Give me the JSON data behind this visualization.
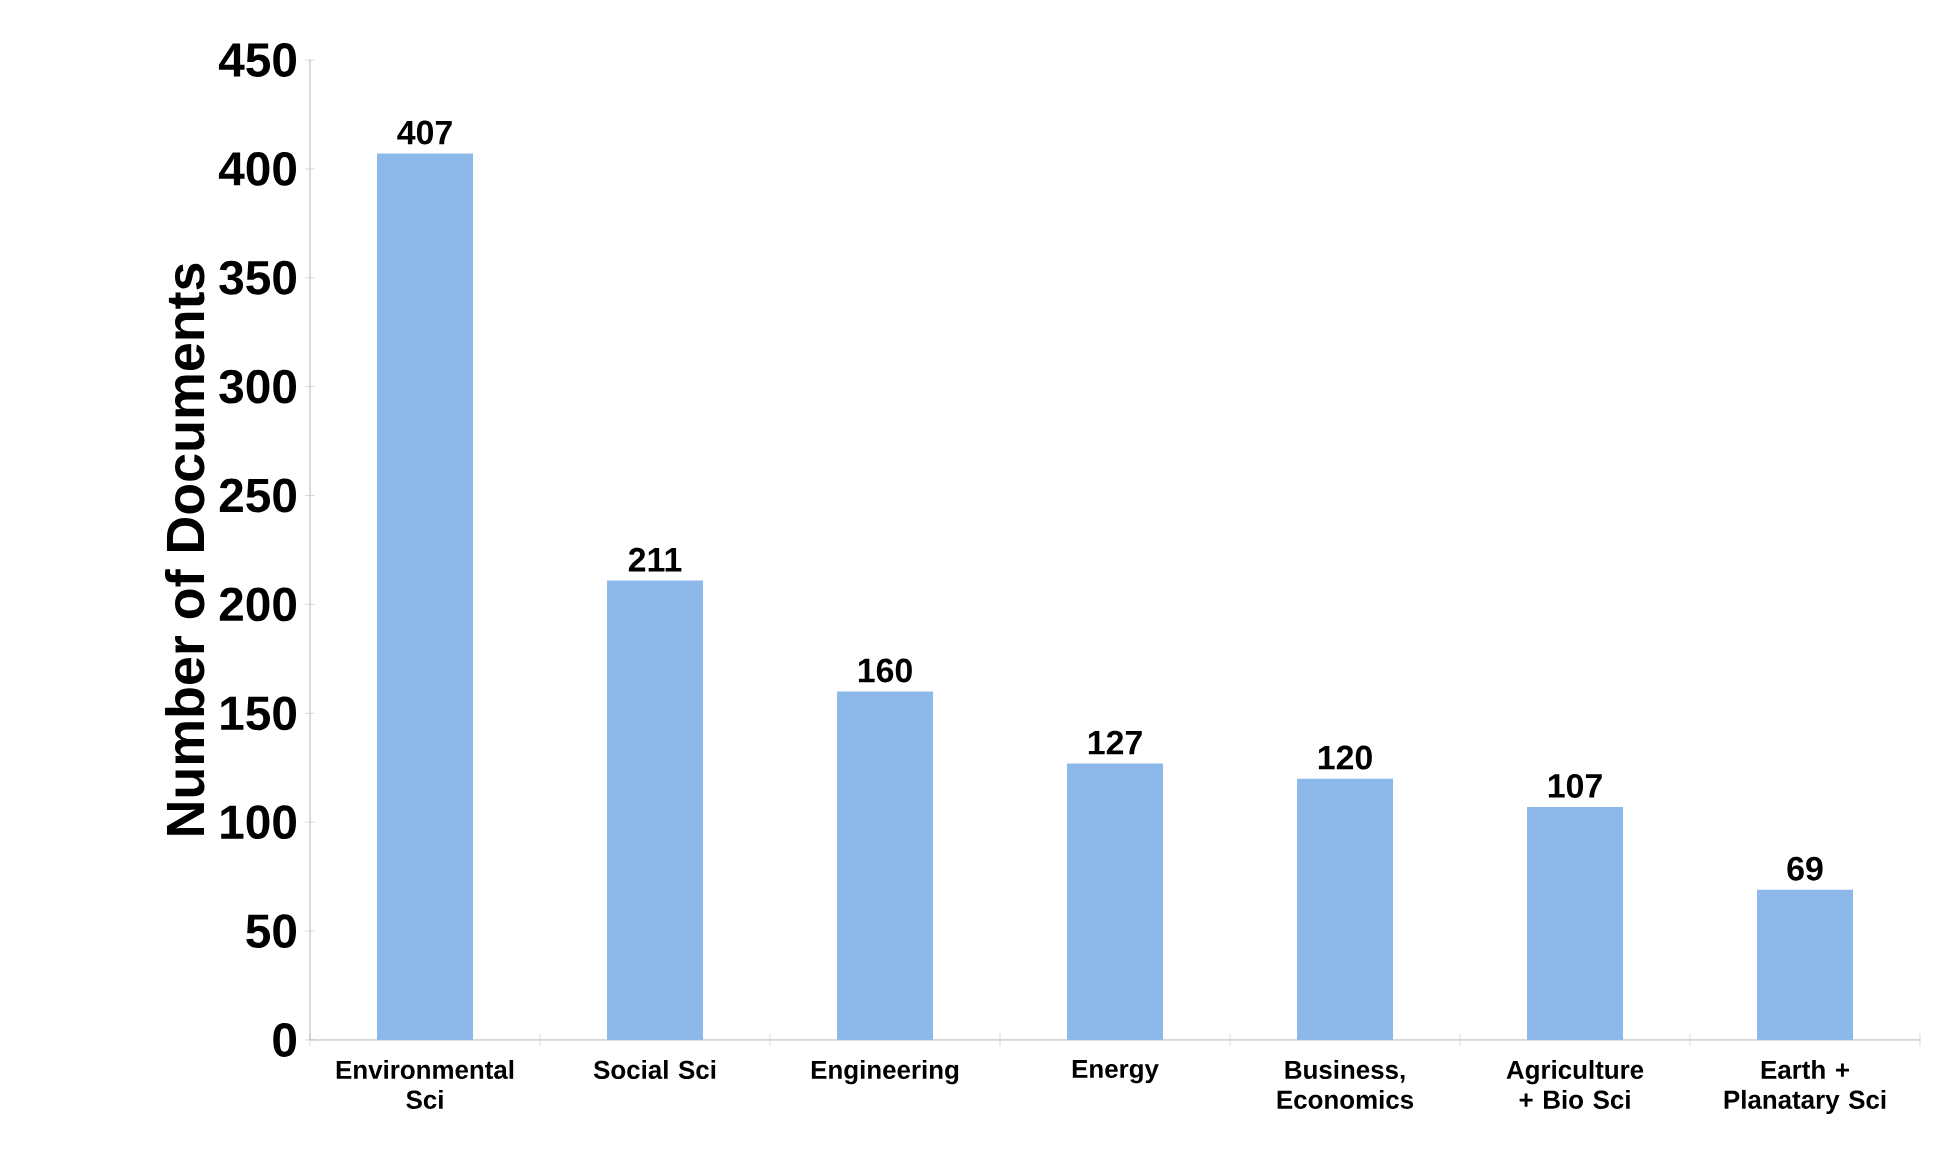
{
  "chart_data": {
    "type": "bar",
    "ylabel": "Number of Documents",
    "categories": [
      "Environmental Sci",
      "Social Sci",
      "Engineering",
      "Energy",
      "Business, Economics",
      "Agriculture + Bio Sci",
      "Earth + Planatary Sci"
    ],
    "values": [
      407,
      211,
      160,
      127,
      120,
      107,
      69
    ],
    "color": "#8db9ea",
    "ylim": [
      0,
      450
    ],
    "yticks": [
      0,
      50,
      100,
      150,
      200,
      250,
      300,
      350,
      400,
      450
    ],
    "data_labels": true
  }
}
